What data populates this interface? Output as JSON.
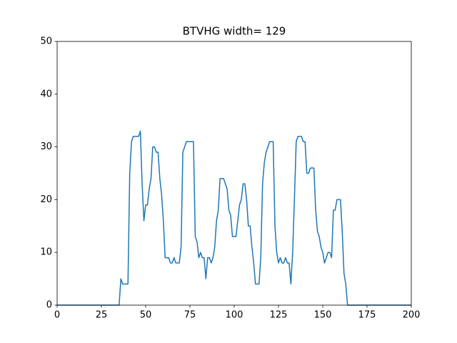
{
  "chart_data": {
    "type": "line",
    "title": "BTVHG width= 129",
    "x": [
      0,
      1,
      2,
      3,
      4,
      5,
      6,
      7,
      8,
      9,
      10,
      11,
      12,
      13,
      14,
      15,
      16,
      17,
      18,
      19,
      20,
      21,
      22,
      23,
      24,
      25,
      26,
      27,
      28,
      29,
      30,
      31,
      32,
      33,
      34,
      35,
      36,
      37,
      38,
      39,
      40,
      41,
      42,
      43,
      44,
      45,
      46,
      47,
      48,
      49,
      50,
      51,
      52,
      53,
      54,
      55,
      56,
      57,
      58,
      59,
      60,
      61,
      62,
      63,
      64,
      65,
      66,
      67,
      68,
      69,
      70,
      71,
      72,
      73,
      74,
      75,
      76,
      77,
      78,
      79,
      80,
      81,
      82,
      83,
      84,
      85,
      86,
      87,
      88,
      89,
      90,
      91,
      92,
      93,
      94,
      95,
      96,
      97,
      98,
      99,
      100,
      101,
      102,
      103,
      104,
      105,
      106,
      107,
      108,
      109,
      110,
      111,
      112,
      113,
      114,
      115,
      116,
      117,
      118,
      119,
      120,
      121,
      122,
      123,
      124,
      125,
      126,
      127,
      128,
      129,
      130,
      131,
      132,
      133,
      134,
      135,
      136,
      137,
      138,
      139,
      140,
      141,
      142,
      143,
      144,
      145,
      146,
      147,
      148,
      149,
      150,
      151,
      152,
      153,
      154,
      155,
      156,
      157,
      158,
      159,
      160,
      161,
      162,
      163,
      164,
      165,
      166,
      167,
      168,
      169,
      170,
      171,
      172,
      173,
      174,
      175,
      176,
      177,
      178,
      179,
      180,
      181,
      182,
      183,
      184,
      185,
      186,
      187,
      188,
      189,
      190,
      191,
      192,
      193,
      194,
      195,
      196,
      197,
      198,
      199,
      200
    ],
    "series": [
      {
        "color": "#1f77b4",
        "values": [
          0,
          0,
          0,
          0,
          0,
          0,
          0,
          0,
          0,
          0,
          0,
          0,
          0,
          0,
          0,
          0,
          0,
          0,
          0,
          0,
          0,
          0,
          0,
          0,
          0,
          0,
          0,
          0,
          0,
          0,
          0,
          0,
          0,
          0,
          0,
          0,
          5,
          4,
          4,
          4,
          4,
          25,
          31,
          32,
          32,
          32,
          32,
          33,
          23,
          16,
          19,
          19,
          22,
          24,
          30,
          30,
          29,
          29,
          24,
          21,
          16,
          9,
          9,
          9,
          8,
          8,
          9,
          8,
          8,
          8,
          11,
          29,
          30,
          31,
          31,
          31,
          31,
          31,
          13,
          12,
          9,
          10,
          9,
          9,
          5,
          9,
          9,
          8,
          9,
          11,
          16,
          18,
          24,
          24,
          24,
          23,
          22,
          18,
          17,
          13,
          13,
          13,
          16,
          19,
          20,
          23,
          23,
          20,
          15,
          15,
          11,
          8,
          4,
          4,
          4,
          9,
          23,
          27,
          29,
          30,
          31,
          31,
          31,
          15,
          10,
          8,
          9,
          8,
          8,
          9,
          8,
          8,
          4,
          10,
          20,
          31,
          32,
          32,
          32,
          31,
          31,
          25,
          25,
          26,
          26,
          26,
          18,
          14,
          13,
          11,
          10,
          8,
          9,
          10,
          10,
          9,
          18,
          18,
          20,
          20,
          20,
          14,
          6,
          4,
          0,
          0,
          0,
          0,
          0,
          0,
          0,
          0,
          0,
          0,
          0,
          0,
          0,
          0,
          0,
          0,
          0,
          0,
          0,
          0,
          0,
          0,
          0,
          0,
          0,
          0,
          0,
          0,
          0,
          0,
          0,
          0,
          0,
          0,
          0,
          0,
          0
        ]
      }
    ],
    "xlim": [
      0,
      200
    ],
    "xticks": [
      0,
      25,
      50,
      75,
      100,
      125,
      150,
      175,
      200
    ],
    "ylim": [
      0,
      50
    ],
    "yticks": [
      0,
      10,
      20,
      30,
      40,
      50
    ]
  }
}
